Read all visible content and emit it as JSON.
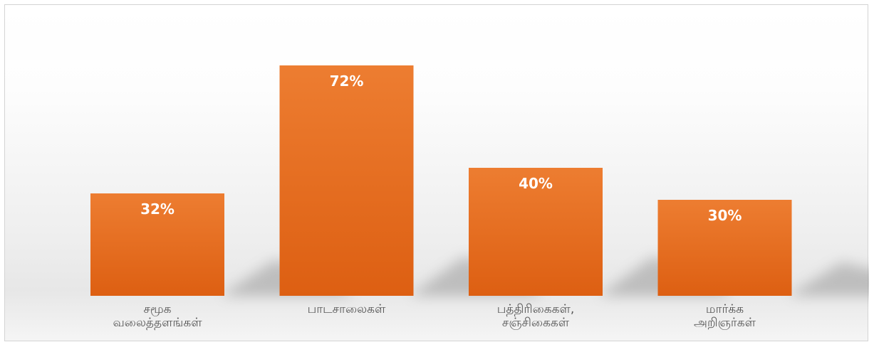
{
  "chart_data": {
    "type": "bar",
    "title": "",
    "xlabel": "",
    "ylabel": "",
    "categories": [
      [
        "சமூக",
        "வலைத்தளங்கள்"
      ],
      [
        "பாடசாலைகள்"
      ],
      [
        "பத்திரிகைகள்,",
        "சஞ்சிகைகள்"
      ],
      [
        "மார்க்க",
        "அறிஞர்கள்"
      ]
    ],
    "values": [
      32,
      72,
      40,
      30
    ],
    "value_labels": [
      "32%",
      "72%",
      "40%",
      "30%"
    ],
    "ylim": [
      0,
      100
    ],
    "grid": false,
    "legend": "none",
    "bar_color": "#E2661F",
    "bar_color_light": "#ED7D31"
  }
}
